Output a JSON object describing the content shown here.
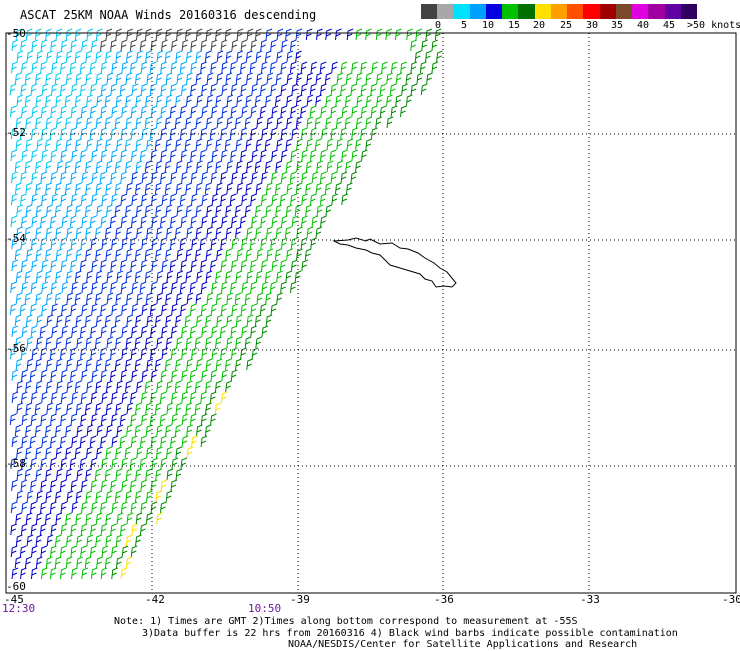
{
  "title": "ASCAT 25KM NOAA Winds 20160316 descending",
  "colorbar": {
    "colors": [
      "#444444",
      "#a8a8a8",
      "#00e0ff",
      "#00a0ff",
      "#0000e0",
      "#00c000",
      "#007000",
      "#ffe000",
      "#ffa000",
      "#ff5000",
      "#ff0000",
      "#a00000",
      "#7a4a2a",
      "#e000e0",
      "#a000a0",
      "#6000a0",
      "#300060"
    ],
    "labels": [
      "0",
      "5",
      "10",
      "15",
      "20",
      "25",
      "30",
      "35",
      "40",
      "45",
      ">50 knots"
    ]
  },
  "map": {
    "lat_labels": [
      "-50",
      "-52",
      "-54",
      "-56",
      "-58",
      "-60"
    ],
    "lon_labels": [
      "-45",
      "-42",
      "-39",
      "-36",
      "-33",
      "-30"
    ],
    "time_labels": [
      "12:30",
      "10:50"
    ],
    "island": "South Georgia coastline (black outline)"
  },
  "notes": [
    "Note: 1) Times are GMT 2)Times along bottom correspond to measurement at -55S",
    "3)Data buffer is 22 hrs from 20160316 4) Black wind barbs indicate possible contamination",
    "NOAA/NESDIS/Center for Satellite Applications and Research"
  ]
}
